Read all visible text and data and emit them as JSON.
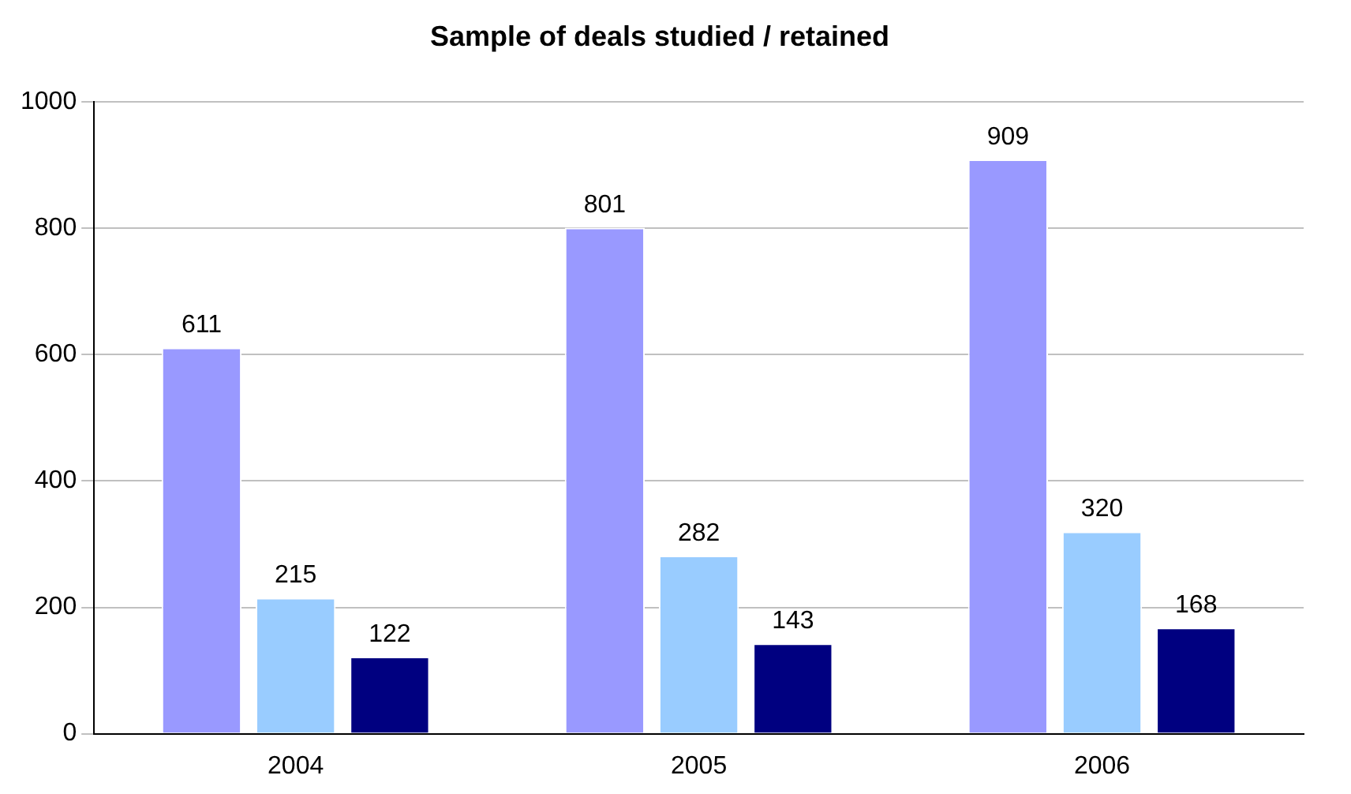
{
  "chart_data": {
    "type": "bar",
    "title": "Sample of deals studied / retained",
    "categories": [
      "2004",
      "2005",
      "2006"
    ],
    "series": [
      {
        "color": "#9999ff",
        "values": [
          611,
          801,
          909
        ]
      },
      {
        "color": "#99ccff",
        "values": [
          215,
          282,
          320
        ]
      },
      {
        "color": "#000080",
        "values": [
          122,
          143,
          168
        ]
      }
    ],
    "ylim": [
      0,
      1000
    ],
    "yticks": [
      0,
      200,
      400,
      600,
      800,
      1000
    ],
    "grid": "y",
    "legend": false,
    "data_labels": true
  }
}
